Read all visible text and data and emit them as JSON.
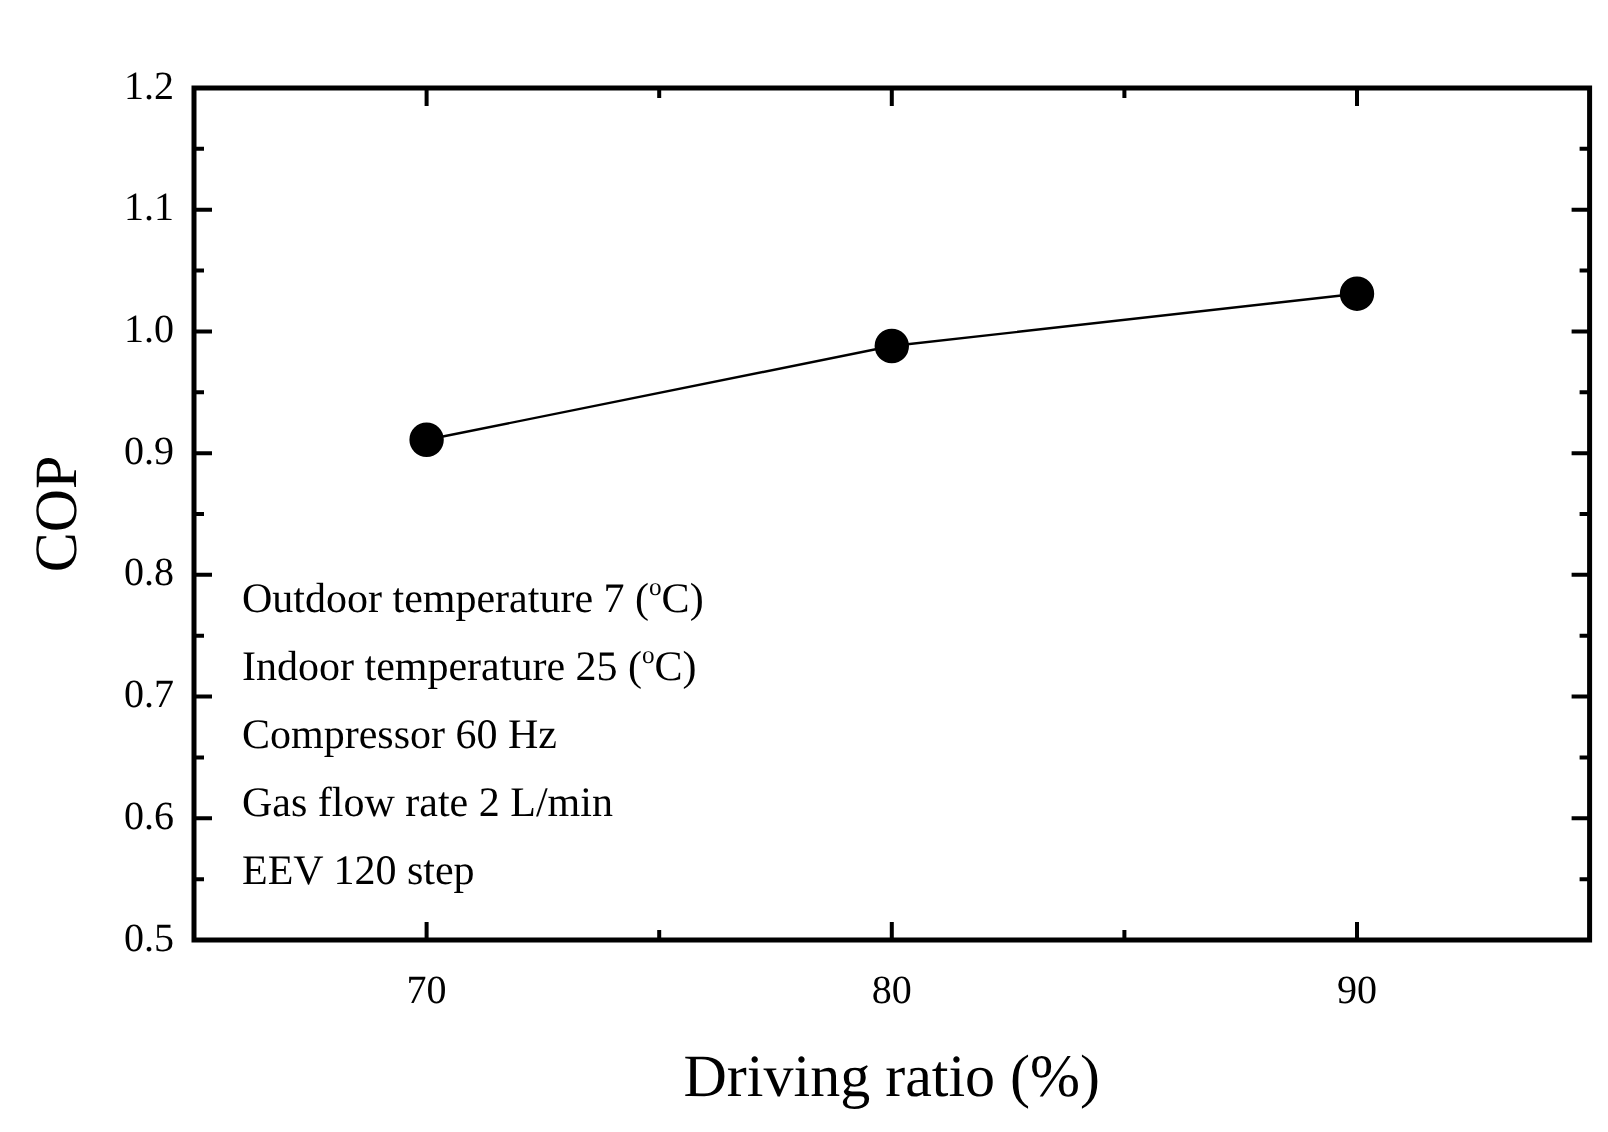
{
  "chart_data": {
    "type": "line",
    "xlabel": "Driving ratio (%)",
    "ylabel": "COP",
    "x": [
      70,
      80,
      90
    ],
    "series": [
      {
        "color": "#000000",
        "values": [
          0.911,
          0.988,
          1.031
        ]
      }
    ],
    "marker": "circle",
    "line_style": "solid",
    "xlim": [
      65,
      95
    ],
    "xticks": [
      70,
      {
        "value": 75,
        "label": null
      },
      80,
      {
        "value": 85,
        "label": null
      },
      90
    ],
    "ylim": [
      0.5,
      1.2
    ],
    "yticks": [
      0.5,
      {
        "value": 0.55,
        "label": null
      },
      0.6,
      {
        "value": 0.65,
        "label": null
      },
      0.7,
      {
        "value": 0.75,
        "label": null
      },
      0.8,
      {
        "value": 0.85,
        "label": null
      },
      0.9,
      {
        "value": 0.95,
        "label": null
      },
      {
        "value": 1,
        "label": "1.0"
      },
      {
        "value": 1.05,
        "label": null
      },
      1.1,
      {
        "value": 1.15,
        "label": null
      },
      1.2
    ],
    "annotations": [
      "Outdoor temperature 7 ($^{o}$C)",
      "Indoor temperature 25 ($^{o}$C)",
      "Compressor 60 Hz",
      "Gas flow rate 2 L/min",
      "EEV 120 step"
    ]
  }
}
